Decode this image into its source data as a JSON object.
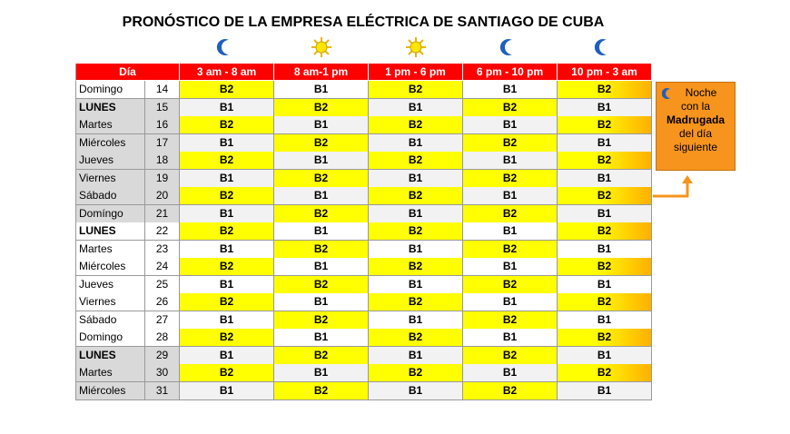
{
  "title": "PRONÓSTICO DE LA EMPRESA ELÉCTRICA DE SANTIAGO DE CUBA",
  "table": {
    "header": [
      "Día",
      "3 am - 8 am",
      "8 am-1 pm",
      "1 pm - 6 pm",
      "6 pm - 10 pm",
      "10 pm - 3 am"
    ],
    "rows": [
      [
        "Domingo",
        14,
        "B2",
        "B1",
        "B2",
        "B1",
        "B2"
      ],
      [
        "LUNES",
        15,
        "B1",
        "B2",
        "B1",
        "B2",
        "B1"
      ],
      [
        "Martes",
        16,
        "B2",
        "B1",
        "B2",
        "B1",
        "B2"
      ],
      [
        "Miércoles",
        17,
        "B1",
        "B2",
        "B1",
        "B2",
        "B1"
      ],
      [
        "Jueves",
        18,
        "B2",
        "B1",
        "B2",
        "B1",
        "B2"
      ],
      [
        "Viernes",
        19,
        "B1",
        "B2",
        "B1",
        "B2",
        "B1"
      ],
      [
        "Sábado",
        20,
        "B2",
        "B1",
        "B2",
        "B1",
        "B2"
      ],
      [
        "Domíngo",
        21,
        "B1",
        "B2",
        "B1",
        "B2",
        "B1"
      ],
      [
        "LUNES",
        22,
        "B2",
        "B1",
        "B2",
        "B1",
        "B2"
      ],
      [
        "Martes",
        23,
        "B1",
        "B2",
        "B1",
        "B2",
        "B1"
      ],
      [
        "Miércoles",
        24,
        "B2",
        "B1",
        "B2",
        "B1",
        "B2"
      ],
      [
        "Jueves",
        25,
        "B1",
        "B2",
        "B1",
        "B2",
        "B1"
      ],
      [
        "Viernes",
        26,
        "B2",
        "B1",
        "B2",
        "B1",
        "B2"
      ],
      [
        "Sábado",
        27,
        "B1",
        "B2",
        "B1",
        "B2",
        "B1"
      ],
      [
        "Domingo",
        28,
        "B2",
        "B1",
        "B2",
        "B1",
        "B2"
      ],
      [
        "LUNES",
        29,
        "B1",
        "B2",
        "B1",
        "B2",
        "B1"
      ],
      [
        "Martes",
        30,
        "B2",
        "B1",
        "B2",
        "B1",
        "B2"
      ],
      [
        "Miércoles",
        31,
        "B1",
        "B2",
        "B1",
        "B2",
        "B1"
      ]
    ]
  },
  "note": {
    "lines": [
      "Noche",
      "con la",
      "Madrugada",
      "del día",
      "siguiente"
    ]
  }
}
